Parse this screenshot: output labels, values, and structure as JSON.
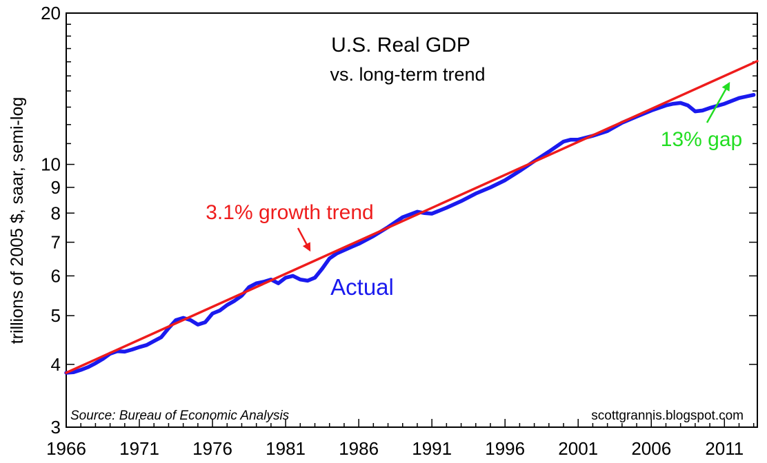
{
  "chart_data": {
    "type": "line",
    "title": "U.S. Real GDP",
    "subtitle": "vs. long-term trend",
    "ylabel": "trillions of 2005 $, saar, semi-log",
    "xlabel": "",
    "yscale": "log",
    "ylim": [
      3,
      20
    ],
    "xlim": [
      1966,
      2013.25
    ],
    "x_ticks": [
      "1966",
      "1971",
      "1976",
      "1981",
      "1986",
      "1991",
      "1996",
      "2001",
      "2006",
      "2011"
    ],
    "y_ticks": [
      "3",
      "4",
      "5",
      "6",
      "7",
      "8",
      "9",
      "10",
      "20"
    ],
    "source": "Source:  Bureau of Economic Analysis",
    "credit": "scottgrannis.blogspot.com",
    "annotations": {
      "trend_label": "3.1% growth trend",
      "actual_label": "Actual",
      "gap_label": "13% gap"
    },
    "colors": {
      "actual": "#1a1aee",
      "trend": "#ee1c1c",
      "gap": "#22dd22"
    },
    "series": [
      {
        "name": "Actual",
        "x": [
          1966.0,
          1966.5,
          1967.0,
          1967.5,
          1968.0,
          1968.5,
          1969.0,
          1969.5,
          1970.0,
          1970.5,
          1971.0,
          1971.5,
          1972.0,
          1972.5,
          1973.0,
          1973.5,
          1974.0,
          1974.5,
          1975.0,
          1975.5,
          1976.0,
          1976.5,
          1977.0,
          1977.5,
          1978.0,
          1978.5,
          1979.0,
          1979.5,
          1980.0,
          1980.5,
          1981.0,
          1981.5,
          1982.0,
          1982.5,
          1983.0,
          1983.5,
          1984.0,
          1984.5,
          1985.0,
          1985.5,
          1986.0,
          1987.0,
          1988.0,
          1989.0,
          1990.0,
          1990.5,
          1991.0,
          1992.0,
          1993.0,
          1994.0,
          1995.0,
          1996.0,
          1997.0,
          1998.0,
          1999.0,
          2000.0,
          2000.5,
          2001.0,
          2002.0,
          2003.0,
          2004.0,
          2005.0,
          2006.0,
          2007.0,
          2007.5,
          2008.0,
          2008.5,
          2009.0,
          2009.5,
          2010.0,
          2011.0,
          2012.0,
          2012.5,
          2013.0
        ],
        "values": [
          3.85,
          3.86,
          3.9,
          3.95,
          4.02,
          4.1,
          4.2,
          4.25,
          4.24,
          4.28,
          4.33,
          4.37,
          4.45,
          4.53,
          4.72,
          4.9,
          4.95,
          4.9,
          4.8,
          4.85,
          5.05,
          5.12,
          5.25,
          5.35,
          5.48,
          5.7,
          5.8,
          5.84,
          5.9,
          5.8,
          5.95,
          6.0,
          5.9,
          5.87,
          5.95,
          6.2,
          6.5,
          6.65,
          6.75,
          6.85,
          6.95,
          7.2,
          7.5,
          7.85,
          8.05,
          8.0,
          7.98,
          8.2,
          8.45,
          8.75,
          9.0,
          9.3,
          9.7,
          10.15,
          10.6,
          11.1,
          11.2,
          11.2,
          11.4,
          11.65,
          12.1,
          12.45,
          12.8,
          13.1,
          13.2,
          13.25,
          13.1,
          12.75,
          12.8,
          12.95,
          13.2,
          13.55,
          13.65,
          13.75
        ]
      },
      {
        "name": "3.1% growth trend",
        "x": [
          1966.0,
          2013.25
        ],
        "values": [
          3.85,
          16.05
        ]
      }
    ]
  }
}
